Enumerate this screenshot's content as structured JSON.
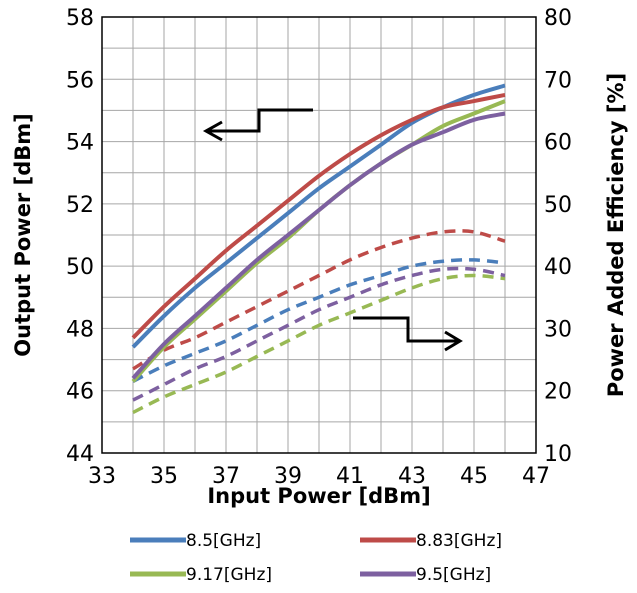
{
  "chart_data": {
    "type": "line",
    "xlabel": "Input  Power [dBm]",
    "ylabel": "Output Power [dBm]",
    "y2label": "Power Added Efficiency [%]",
    "xlim": [
      33,
      47
    ],
    "ylim": [
      44,
      58
    ],
    "y2lim": [
      10,
      80
    ],
    "xticks": [
      33,
      35,
      37,
      39,
      41,
      43,
      45,
      47
    ],
    "yticks": [
      44,
      46,
      48,
      50,
      52,
      54,
      56,
      58
    ],
    "y2ticks": [
      10,
      20,
      30,
      40,
      50,
      60,
      70,
      80
    ],
    "grid": true,
    "legend_position": "bottom",
    "x": [
      34,
      35,
      36,
      37,
      38,
      39,
      40,
      41,
      42,
      43,
      44,
      45,
      46
    ],
    "series": [
      {
        "name": "8.5[GHz]",
        "color": "#4a7ebb",
        "output_power": [
          47.4,
          48.4,
          49.3,
          50.1,
          50.9,
          51.7,
          52.5,
          53.2,
          53.9,
          54.6,
          55.1,
          55.5,
          55.8
        ],
        "pae": [
          21.5,
          24.0,
          26.0,
          28.0,
          30.5,
          33.0,
          35.0,
          37.0,
          38.5,
          40.0,
          40.8,
          41.0,
          40.5
        ]
      },
      {
        "name": "8.83[GHz]",
        "color": "#be4b48",
        "output_power": [
          47.7,
          48.7,
          49.6,
          50.5,
          51.3,
          52.1,
          52.9,
          53.6,
          54.2,
          54.7,
          55.1,
          55.3,
          55.5
        ],
        "pae": [
          23.5,
          26.5,
          28.5,
          31.0,
          33.5,
          36.0,
          38.5,
          41.0,
          43.0,
          44.5,
          45.5,
          45.5,
          44.0
        ]
      },
      {
        "name": "9.17[GHz]",
        "color": "#98b954",
        "output_power": [
          46.3,
          47.4,
          48.3,
          49.2,
          50.1,
          50.9,
          51.8,
          52.6,
          53.3,
          53.9,
          54.5,
          54.9,
          55.3
        ],
        "pae": [
          16.5,
          19.0,
          21.0,
          23.0,
          25.5,
          28.0,
          30.5,
          32.5,
          34.5,
          36.5,
          38.0,
          38.5,
          38.0
        ]
      },
      {
        "name": "9.5[GHz]",
        "color": "#7d60a0",
        "output_power": [
          46.4,
          47.5,
          48.4,
          49.3,
          50.2,
          51.0,
          51.8,
          52.6,
          53.3,
          53.9,
          54.3,
          54.7,
          54.9
        ],
        "pae": [
          18.5,
          21.0,
          23.5,
          25.5,
          28.0,
          30.5,
          33.0,
          35.0,
          37.0,
          38.5,
          39.5,
          39.5,
          38.5
        ]
      }
    ],
    "annotations": [
      {
        "description": "arrow pointing left toward Output Power axis"
      },
      {
        "description": "arrow pointing right toward Power Added Efficiency axis"
      }
    ]
  }
}
